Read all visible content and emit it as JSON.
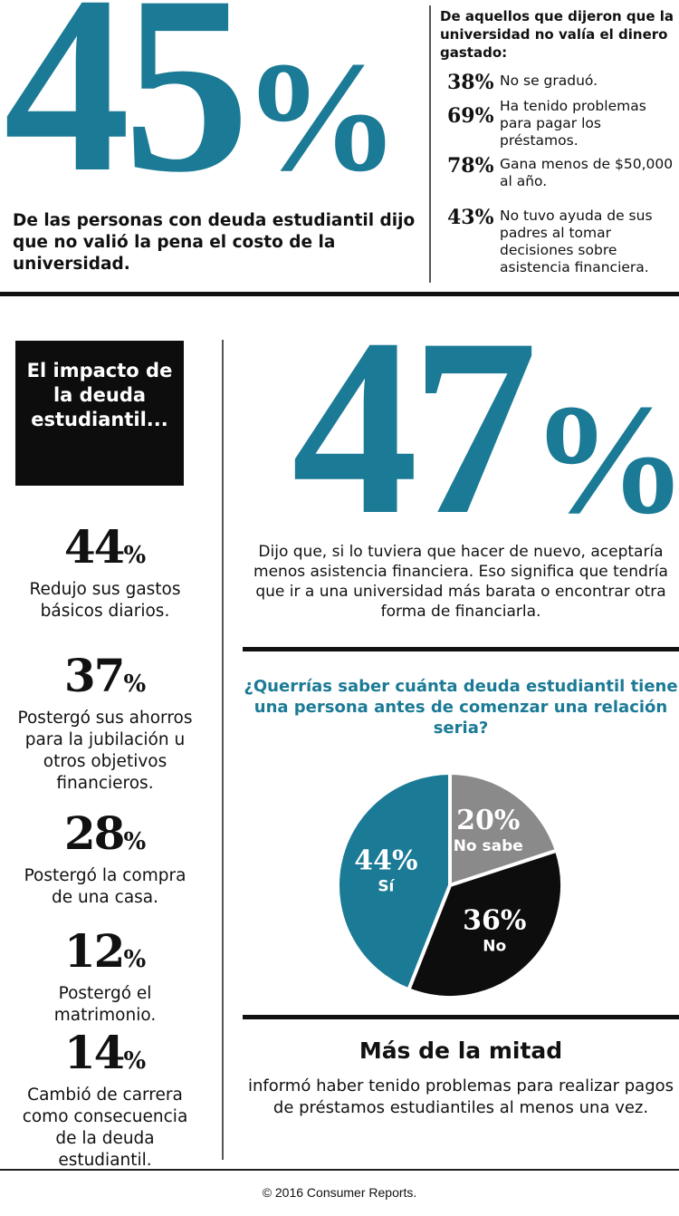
{
  "top": {
    "headline_number": "45",
    "headline_pct": "%",
    "headline_text": "De las personas con deuda estudiantil dijo que no valió la pena el costo de la universidad.",
    "sub_heading": "De aquellos que dijeron que la universidad no valía el dinero gastado:",
    "stats": [
      {
        "value": "38%",
        "text": "No se graduó."
      },
      {
        "value": "69%",
        "text": "Ha tenido problemas para pagar los préstamos."
      },
      {
        "value": "78%",
        "text": "Gana menos de $50,000 al año."
      },
      {
        "value": "43%",
        "text": "No tuvo ayuda de sus padres al tomar decisiones sobre asistencia financiera."
      }
    ]
  },
  "impact": {
    "title": "El impacto de la deuda estudiantil...",
    "stats": [
      {
        "value": "44",
        "pct": "%",
        "text": "Redujo sus gastos básicos diarios."
      },
      {
        "value": "37",
        "pct": "%",
        "text": "Postergó sus ahorros para la jubilación u otros objetivos financieros."
      },
      {
        "value": "28",
        "pct": "%",
        "text": "Postergó la compra de una casa."
      },
      {
        "value": "12",
        "pct": "%",
        "text": "Postergó el matrimonio."
      },
      {
        "value": "14",
        "pct": "%",
        "text": "Cambió de carrera como consecuencia de la deuda estudiantil."
      }
    ]
  },
  "feature": {
    "number": "47",
    "pct": "%",
    "text": "Dijo que, si lo tuviera que hacer de nuevo, aceptaría menos asistencia financiera. Eso significa que tendría que ir a una universidad más barata o encontrar otra forma de financiarla."
  },
  "chart_data": {
    "type": "pie",
    "title": "¿Querrías saber cuánta deuda estudiantil tiene una persona antes de comenzar una relación seria?",
    "slices": [
      {
        "label": "No sabe",
        "value": 20,
        "value_label": "20%",
        "color": "#8a8a8a"
      },
      {
        "label": "No",
        "value": 36,
        "value_label": "36%",
        "color": "#0d0d0d"
      },
      {
        "label": "Sí",
        "value": 44,
        "value_label": "44%",
        "color": "#1b7a95"
      }
    ]
  },
  "bottom": {
    "heading": "Más de la mitad",
    "text": "informó haber tenido problemas para realizar pagos de préstamos estudiantiles al menos una vez."
  },
  "footer": {
    "copyright": "© 2016 Consumer Reports."
  },
  "colors": {
    "accent": "#1b7a95"
  }
}
